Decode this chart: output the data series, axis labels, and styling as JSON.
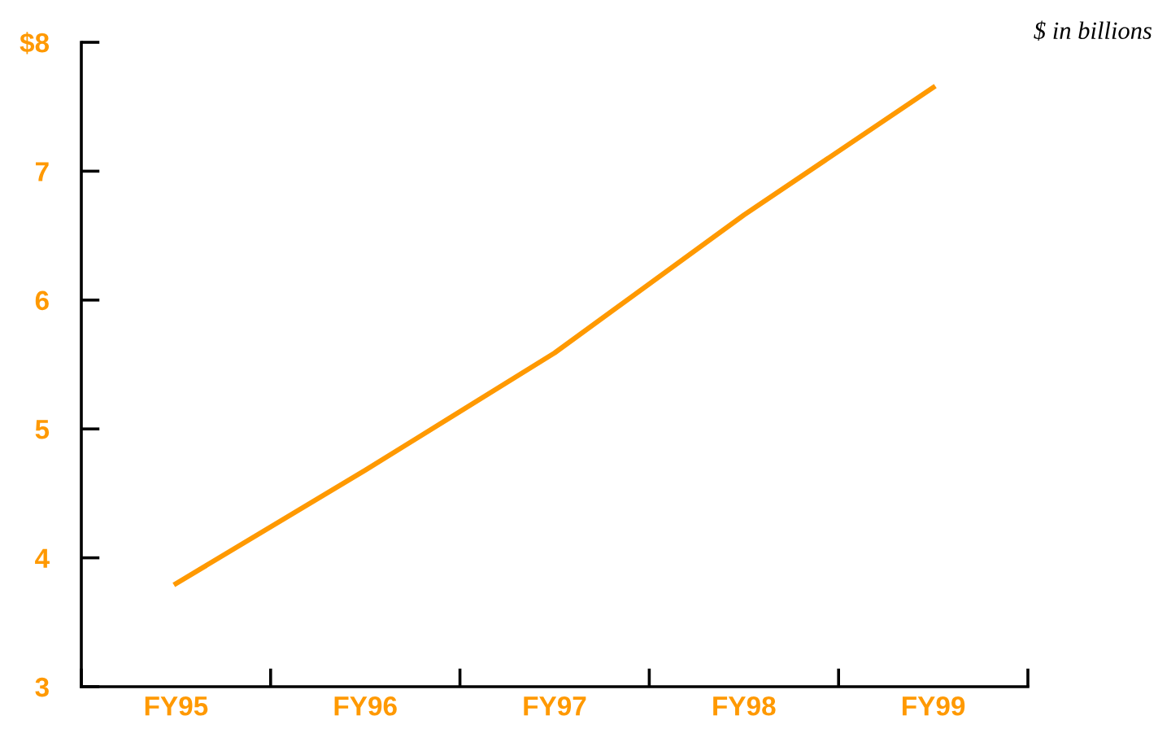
{
  "chart_data": {
    "type": "line",
    "categories": [
      "FY95",
      "FY96",
      "FY97",
      "FY98",
      "FY99"
    ],
    "series": [
      {
        "color": "#ff9900",
        "values": [
          3.8,
          4.68,
          5.59,
          6.66,
          7.65
        ]
      }
    ],
    "ylim": [
      3,
      8
    ],
    "yticks": [
      3,
      4,
      5,
      6,
      7,
      {
        "value": 8,
        "label": "$8"
      }
    ],
    "annotations": [
      "$ in billions"
    ],
    "grid": false,
    "legend": false,
    "marker": "none",
    "line_style": "solid"
  }
}
